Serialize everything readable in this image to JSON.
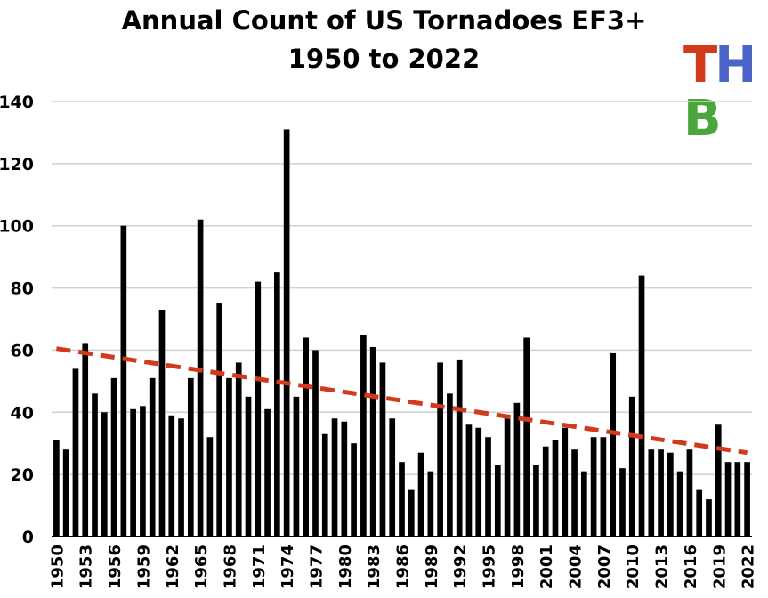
{
  "title_line1": "Annual Count of US Tornadoes EF3+",
  "title_line2": "1950 to 2022",
  "logo": {
    "letters": [
      "T",
      "H",
      "B"
    ],
    "colors": [
      "#d23a1c",
      "#4a64c8",
      "#4aa63a"
    ]
  },
  "colors": {
    "bar": "#000000",
    "trend": "#d23a1c",
    "grid": "#d0d0d0",
    "axis": "#000000"
  },
  "chart_data": {
    "type": "bar",
    "title": "Annual Count of US Tornadoes EF3+",
    "subtitle": "1950 to 2022",
    "xlabel": "",
    "ylabel": "",
    "ylim": [
      0,
      140
    ],
    "yticks": [
      0,
      20,
      40,
      60,
      80,
      100,
      120,
      140
    ],
    "grid": true,
    "legend": "none",
    "x_tick_labels": [
      "1950",
      "1953",
      "1956",
      "1959",
      "1962",
      "1965",
      "1968",
      "1971",
      "1974",
      "1977",
      "1980",
      "1983",
      "1986",
      "1989",
      "1992",
      "1995",
      "1998",
      "2001",
      "2004",
      "2007",
      "2010",
      "2013",
      "2016",
      "2019",
      "2022"
    ],
    "categories": [
      1950,
      1951,
      1952,
      1953,
      1954,
      1955,
      1956,
      1957,
      1958,
      1959,
      1960,
      1961,
      1962,
      1963,
      1964,
      1965,
      1966,
      1967,
      1968,
      1969,
      1970,
      1971,
      1972,
      1973,
      1974,
      1975,
      1976,
      1977,
      1978,
      1979,
      1980,
      1981,
      1982,
      1983,
      1984,
      1985,
      1986,
      1987,
      1988,
      1989,
      1990,
      1991,
      1992,
      1993,
      1994,
      1995,
      1996,
      1997,
      1998,
      1999,
      2000,
      2001,
      2002,
      2003,
      2004,
      2005,
      2006,
      2007,
      2008,
      2009,
      2010,
      2011,
      2012,
      2013,
      2014,
      2015,
      2016,
      2017,
      2018,
      2019,
      2020,
      2021,
      2022
    ],
    "values": [
      31,
      28,
      54,
      62,
      46,
      40,
      51,
      100,
      41,
      42,
      51,
      73,
      39,
      38,
      51,
      102,
      32,
      75,
      51,
      56,
      45,
      82,
      41,
      85,
      131,
      45,
      64,
      60,
      33,
      38,
      37,
      30,
      65,
      61,
      56,
      38,
      24,
      15,
      27,
      21,
      56,
      46,
      57,
      36,
      35,
      32,
      23,
      39,
      43,
      64,
      23,
      29,
      31,
      35,
      28,
      21,
      32,
      32,
      59,
      22,
      45,
      84,
      28,
      28,
      27,
      21,
      28,
      15,
      12,
      36,
      24,
      24,
      24
    ],
    "trendline": {
      "style": "dashed",
      "start": [
        1950,
        60.5
      ],
      "end": [
        2022,
        27
      ]
    }
  }
}
